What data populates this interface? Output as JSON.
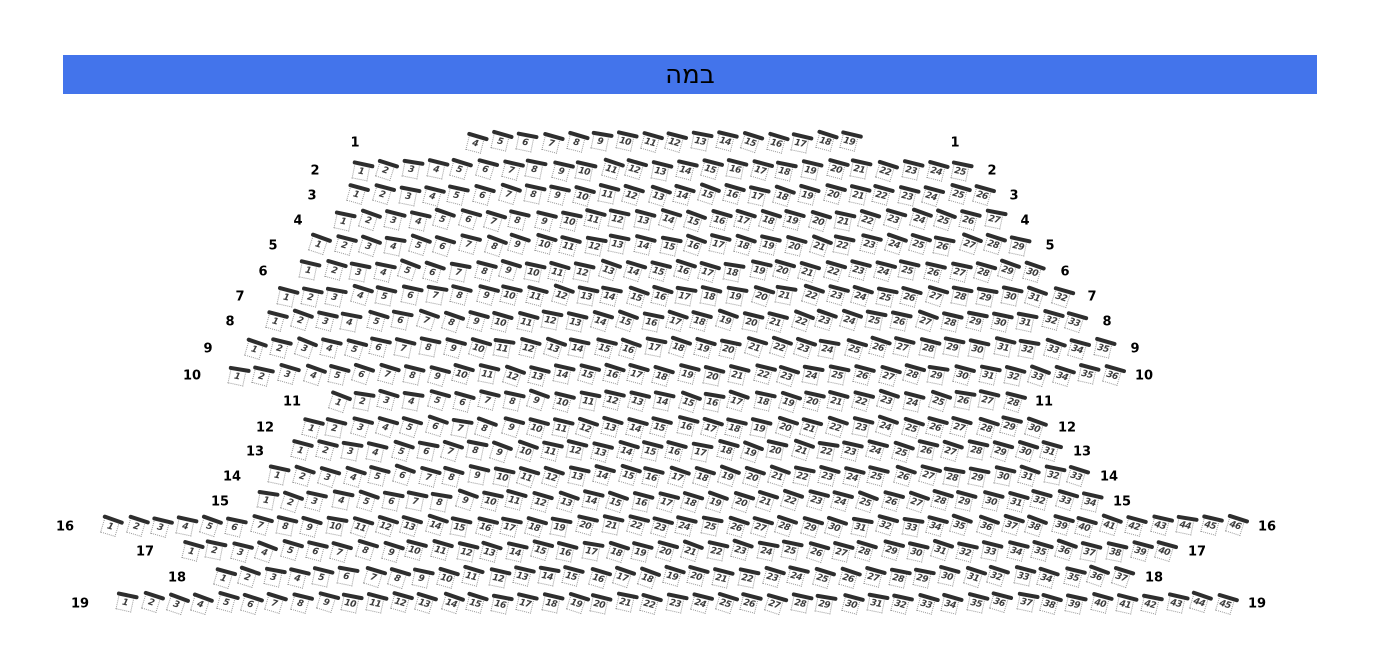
{
  "stage": {
    "label": "במה"
  },
  "colors": {
    "stage_bg": "#4374EB",
    "stage_text": "#000000",
    "seat_bar": "#2e2e2e",
    "seat_border": "#9a9a9a",
    "seat_number": "#3d3d3d",
    "row_label": "#000000",
    "background": "#ffffff"
  },
  "rows": [
    {
      "row": "1",
      "seat_from": 4,
      "seat_to": 19
    },
    {
      "row": "2",
      "seat_from": 1,
      "seat_to": 25
    },
    {
      "row": "3",
      "seat_from": 1,
      "seat_to": 26
    },
    {
      "row": "4",
      "seat_from": 1,
      "seat_to": 27
    },
    {
      "row": "5",
      "seat_from": 1,
      "seat_to": 29
    },
    {
      "row": "6",
      "seat_from": 1,
      "seat_to": 30
    },
    {
      "row": "7",
      "seat_from": 1,
      "seat_to": 32
    },
    {
      "row": "8",
      "seat_from": 1,
      "seat_to": 33
    },
    {
      "row": "9",
      "seat_from": 1,
      "seat_to": 35
    },
    {
      "row": "10",
      "seat_from": 1,
      "seat_to": 36
    },
    {
      "row": "11",
      "seat_from": 1,
      "seat_to": 28
    },
    {
      "row": "12",
      "seat_from": 1,
      "seat_to": 30
    },
    {
      "row": "13",
      "seat_from": 1,
      "seat_to": 31
    },
    {
      "row": "14",
      "seat_from": 1,
      "seat_to": 33
    },
    {
      "row": "15",
      "seat_from": 1,
      "seat_to": 34
    },
    {
      "row": "16",
      "seat_from": 1,
      "seat_to": 46
    },
    {
      "row": "17",
      "seat_from": 1,
      "seat_to": 40
    },
    {
      "row": "18",
      "seat_from": 1,
      "seat_to": 37
    },
    {
      "row": "19",
      "seat_from": 1,
      "seat_to": 45
    }
  ]
}
